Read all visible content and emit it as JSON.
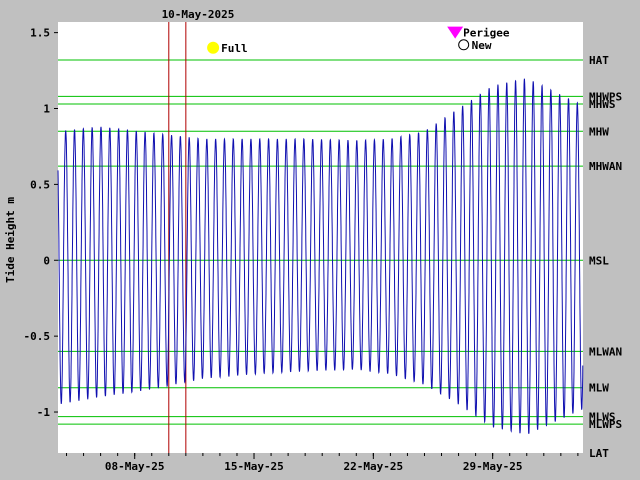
{
  "colors": {
    "background": "#c0c0c0",
    "plot_bg": "#ffffff",
    "tide_line": "#1010b0",
    "level_line": "#00c000",
    "date_marker": "#b00000",
    "perigee": "#ff00ff",
    "full_moon": "#ffff00"
  },
  "chart_data": {
    "type": "line",
    "title": "10-May-2025",
    "ylabel": "Tide Height m",
    "ylim": [
      -1.27,
      1.57
    ],
    "yticks": [
      {
        "value": 1.5,
        "label": "1.5"
      },
      {
        "value": 1,
        "label": "1"
      },
      {
        "value": 0.5,
        "label": "0.5"
      },
      {
        "value": 0,
        "label": "0"
      },
      {
        "value": -0.5,
        "label": "-0.5"
      },
      {
        "value": -1,
        "label": "-1"
      }
    ],
    "xlim_days": [
      3.5,
      34.3
    ],
    "xticks": [
      {
        "day": 8,
        "label": "08-May-25"
      },
      {
        "day": 15,
        "label": "15-May-25"
      },
      {
        "day": 22,
        "label": "22-May-25"
      },
      {
        "day": 29,
        "label": "29-May-25"
      }
    ],
    "date_markers": [
      10.0,
      11.0
    ],
    "tidal_levels": [
      {
        "name": "HAT",
        "value": 1.32
      },
      {
        "name": "MHWPS",
        "value": 1.08
      },
      {
        "name": "MHWS",
        "value": 1.03
      },
      {
        "name": "MHW",
        "value": 0.85
      },
      {
        "name": "MHWAN",
        "value": 0.62
      },
      {
        "name": "MSL",
        "value": 0.0
      },
      {
        "name": "MLWAN",
        "value": -0.6
      },
      {
        "name": "MLW",
        "value": -0.84
      },
      {
        "name": "MLWS",
        "value": -1.03
      },
      {
        "name": "MLWPS",
        "value": -1.08
      },
      {
        "name": "LAT",
        "value": -1.27
      }
    ],
    "events": [
      {
        "label": "Full",
        "symbol": "full-moon",
        "day": 12.6,
        "value": 1.4
      },
      {
        "label": "Perigee",
        "symbol": "perigee-triangle",
        "day": 26.8,
        "value": 1.5
      },
      {
        "label": "New",
        "symbol": "new-moon",
        "day": 27.3,
        "value": 1.42
      }
    ],
    "series": [
      {
        "period_hours": 12.42,
        "envelope": {
          "days": [
            3.5,
            6,
            9,
            12,
            15,
            18,
            21,
            23,
            25,
            27,
            29,
            31,
            34.3
          ],
          "high": [
            0.85,
            0.88,
            0.84,
            0.8,
            0.8,
            0.8,
            0.79,
            0.8,
            0.85,
            1.0,
            1.15,
            1.2,
            1.02
          ],
          "low": [
            -0.95,
            -0.9,
            -0.85,
            -0.78,
            -0.75,
            -0.73,
            -0.72,
            -0.75,
            -0.82,
            -0.95,
            -1.1,
            -1.15,
            -0.98
          ]
        }
      }
    ]
  }
}
